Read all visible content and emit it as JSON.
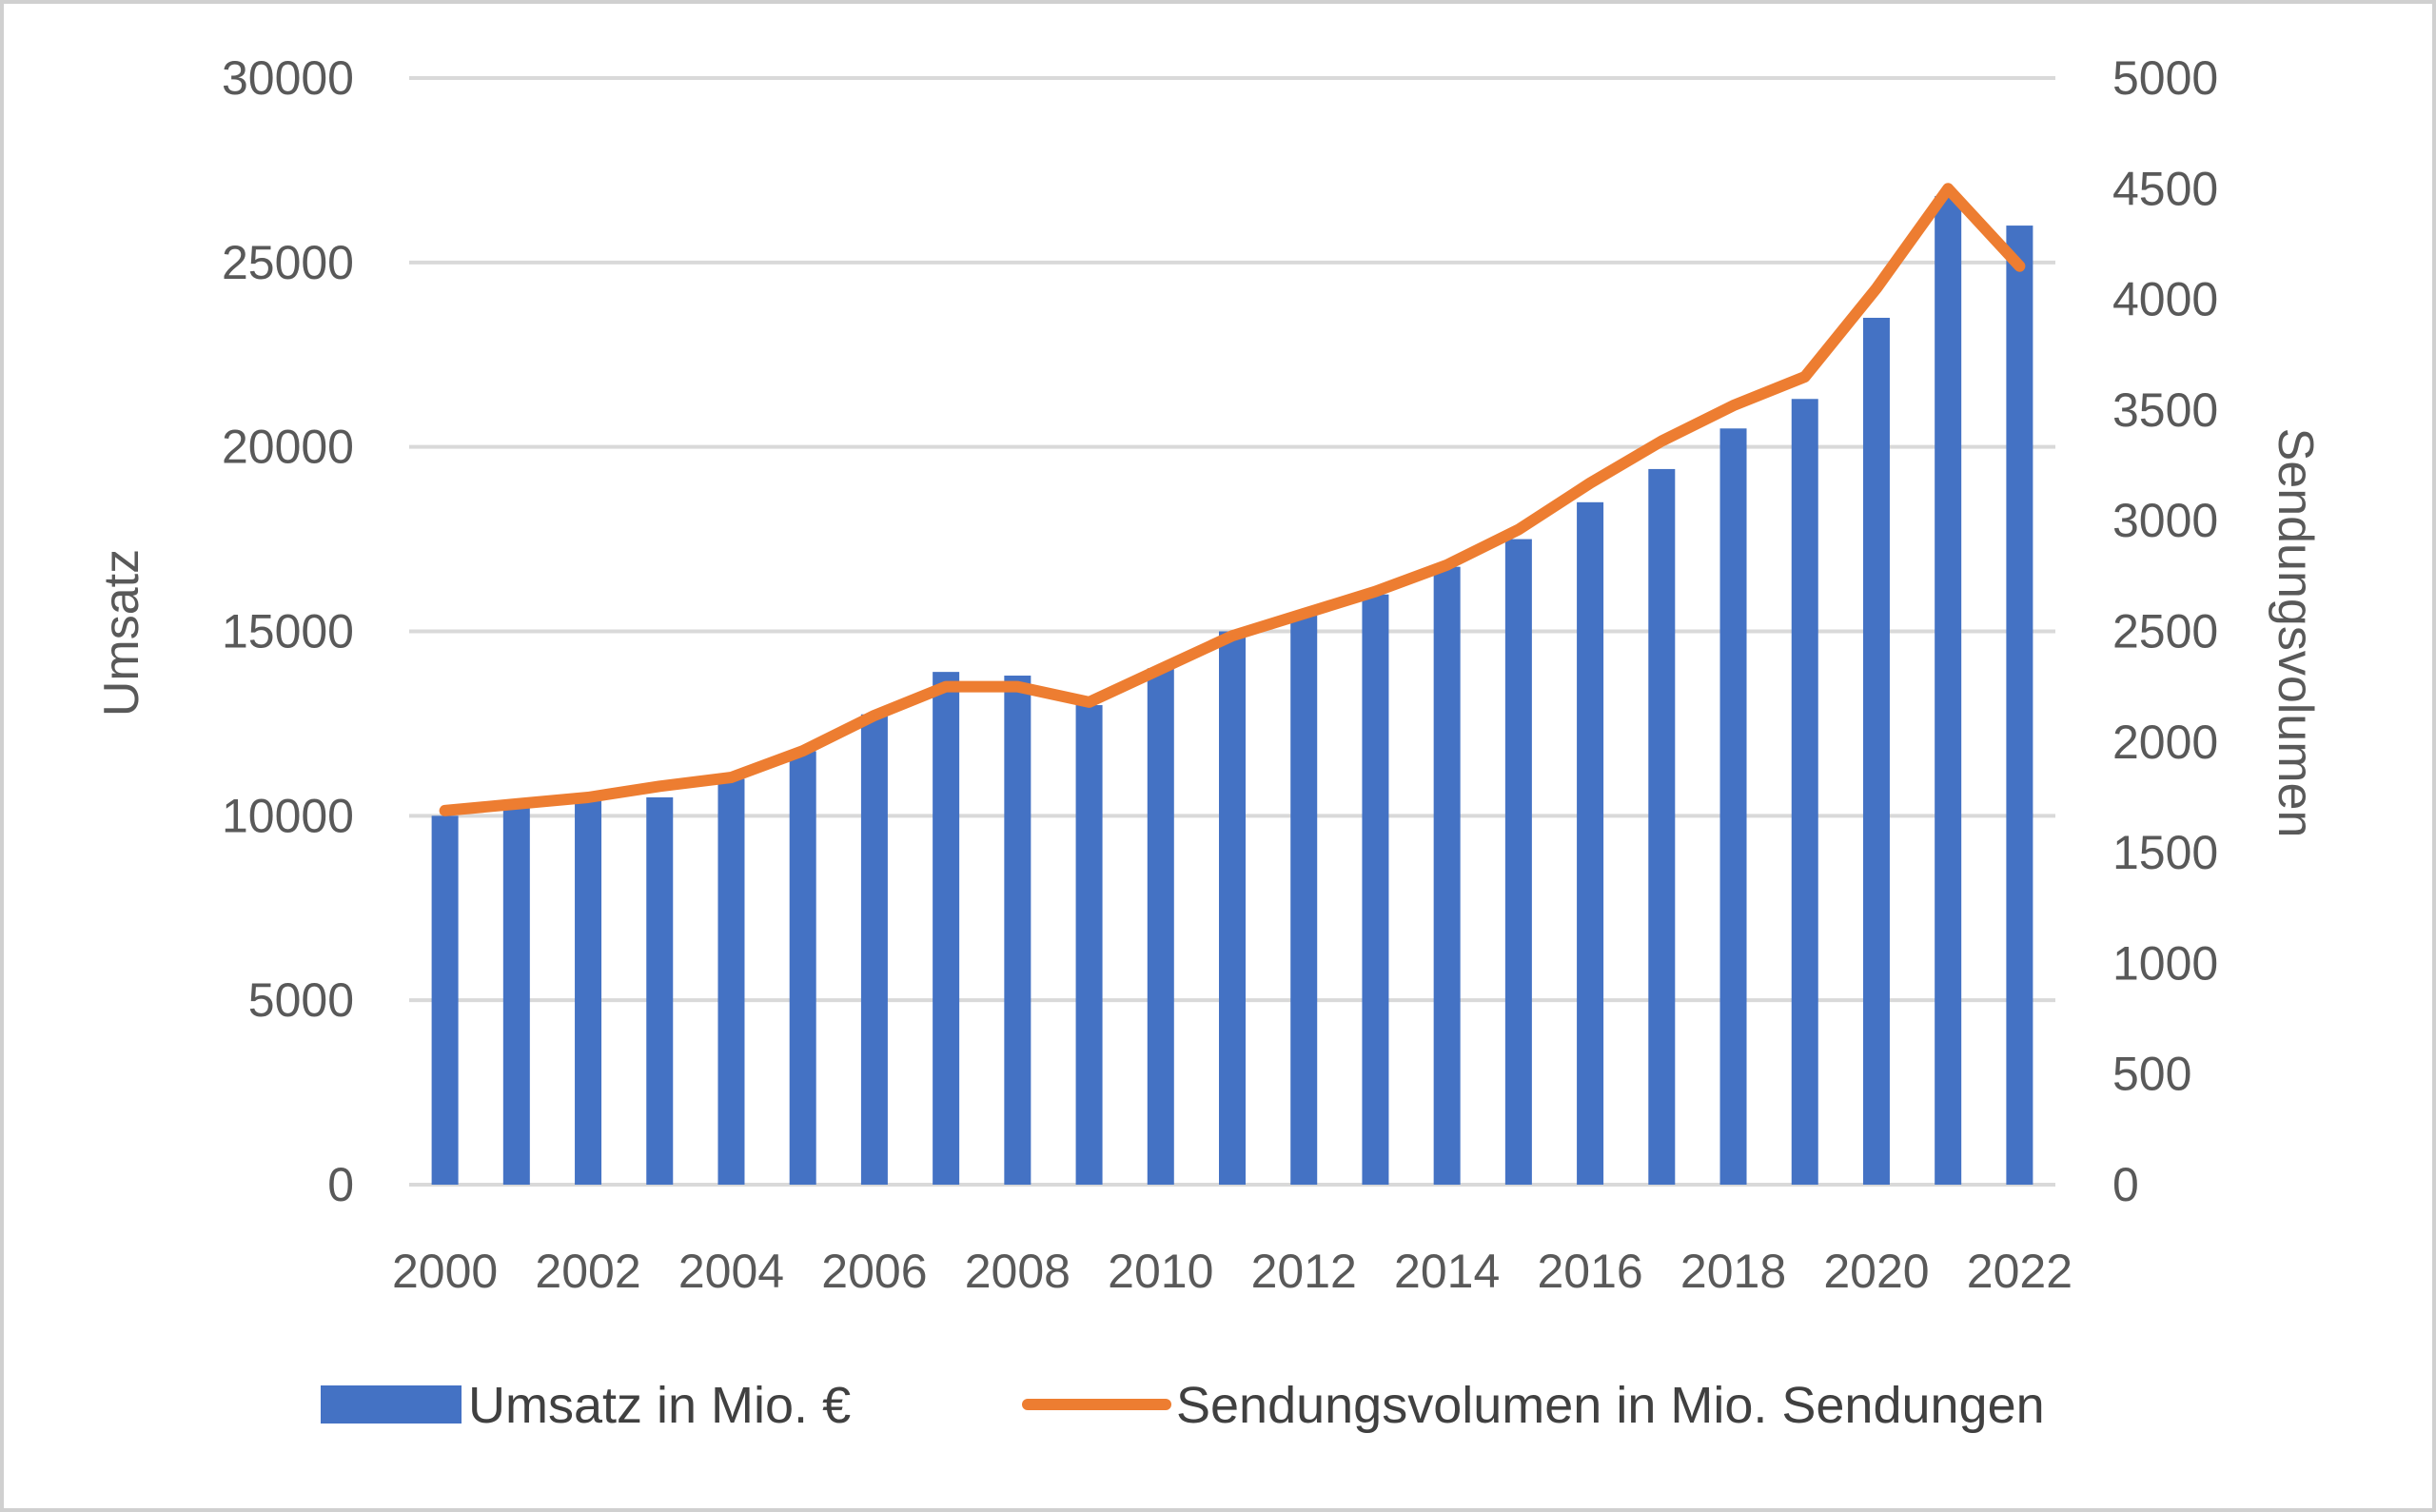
{
  "chart_data": {
    "type": "bar",
    "categories": [
      "2000",
      "2001",
      "2002",
      "2003",
      "2004",
      "2005",
      "2006",
      "2007",
      "2008",
      "2009",
      "2010",
      "2011",
      "2012",
      "2013",
      "2014",
      "2015",
      "2016",
      "2017",
      "2018",
      "2019",
      "2020",
      "2021",
      "2022"
    ],
    "x_tick_labels": [
      "2000",
      "2002",
      "2004",
      "2006",
      "2008",
      "2010",
      "2012",
      "2014",
      "2016",
      "2018",
      "2020",
      "2022"
    ],
    "series": [
      {
        "name": "Umsatz in Mio. €",
        "type": "bar",
        "axis": "left",
        "color": "#4472C4",
        "values": [
          10000,
          10250,
          10500,
          10500,
          11000,
          11750,
          12750,
          13900,
          13800,
          13000,
          14000,
          15000,
          15500,
          16000,
          16750,
          17500,
          18500,
          19400,
          20500,
          21300,
          23500,
          26800,
          26000
        ]
      },
      {
        "name": "Sendungsvolumen in Mio. Sendungen",
        "type": "line",
        "axis": "right",
        "color": "#ED7D31",
        "values": [
          1690,
          1720,
          1750,
          1800,
          1840,
          1960,
          2120,
          2250,
          2250,
          2180,
          2330,
          2480,
          2580,
          2680,
          2800,
          2960,
          3170,
          3360,
          3520,
          3650,
          4050,
          4500,
          4150
        ]
      }
    ],
    "ylabel": "Umsatz",
    "y2label": "Sendungsvolumen",
    "ylim": [
      0,
      30000
    ],
    "y_ticks": [
      0,
      5000,
      10000,
      15000,
      20000,
      25000,
      30000
    ],
    "y2lim": [
      0,
      5000
    ],
    "y2_ticks": [
      0,
      500,
      1000,
      1500,
      2000,
      2500,
      3000,
      3500,
      4000,
      4500,
      5000
    ],
    "grid": true,
    "legend_position": "bottom"
  }
}
